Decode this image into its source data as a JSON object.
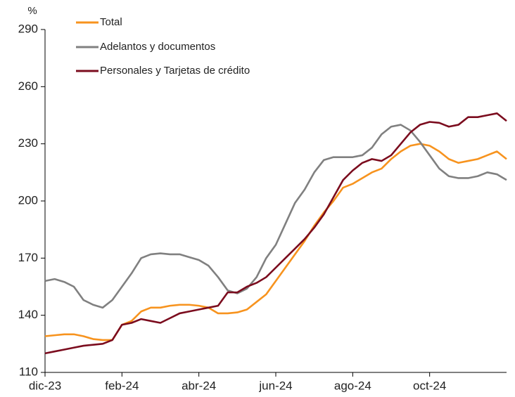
{
  "chart_data": {
    "type": "line",
    "ylabel": "%",
    "categories": [
      "dic-23",
      null,
      null,
      null,
      null,
      null,
      null,
      null,
      "feb-24",
      null,
      null,
      null,
      null,
      null,
      null,
      null,
      "abr-24",
      null,
      null,
      null,
      null,
      null,
      null,
      null,
      "jun-24",
      null,
      null,
      null,
      null,
      null,
      null,
      null,
      "ago-24",
      null,
      null,
      null,
      null,
      null,
      null,
      null,
      "oct-24",
      null,
      null,
      null,
      null,
      null,
      null,
      null,
      null
    ],
    "ylim": [
      110,
      290
    ],
    "yticks": [
      110,
      140,
      170,
      200,
      230,
      260,
      290
    ],
    "grid": false,
    "legend": "top-left",
    "series": [
      {
        "name": "Total",
        "color": "#f7931e",
        "values": [
          129,
          129.5,
          130,
          130,
          129,
          127.5,
          127,
          127,
          135,
          137,
          142,
          144,
          144,
          145,
          145.5,
          145.5,
          145,
          144,
          141,
          141,
          141.5,
          143,
          147,
          151,
          158,
          165,
          172,
          179,
          187,
          194,
          200,
          207,
          209,
          212,
          215,
          217,
          222,
          226,
          229,
          230,
          229,
          226,
          222,
          220,
          221,
          222,
          224,
          226,
          222
        ]
      },
      {
        "name": "Adelantos y documentos",
        "color": "#808080",
        "values": [
          158,
          159,
          157.5,
          155,
          148,
          145.5,
          144,
          148,
          155,
          162,
          170,
          172,
          172.5,
          172,
          172,
          170.5,
          169,
          166,
          160,
          153,
          151.5,
          154,
          160,
          170,
          177,
          188,
          199,
          206,
          215,
          221.5,
          223,
          223,
          223,
          224,
          228,
          235,
          239,
          240,
          237,
          231,
          224,
          217,
          213,
          212,
          212,
          213,
          215,
          214,
          211
        ]
      },
      {
        "name": "Personales y Tarjetas de crédito",
        "color": "#7b0c1e",
        "values": [
          120,
          121,
          122,
          123,
          124,
          124.5,
          125,
          127,
          135,
          136,
          138,
          137,
          136,
          138.5,
          141,
          142,
          143,
          144,
          145,
          152,
          152,
          155,
          157,
          160,
          165,
          170,
          175,
          180,
          186,
          193,
          202,
          211,
          216,
          220,
          222,
          221,
          224,
          230,
          236,
          240,
          241.5,
          241,
          239,
          240,
          244,
          244,
          245,
          246,
          242
        ]
      }
    ]
  }
}
